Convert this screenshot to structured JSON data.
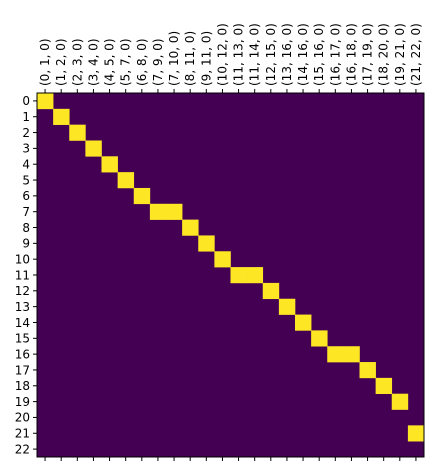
{
  "chart_data": {
    "type": "heatmap",
    "title": "",
    "xlabel": "",
    "ylabel": "",
    "colormap": "viridis",
    "colors": {
      "low": "#440154",
      "high": "#fde725"
    },
    "value_range": [
      0,
      1
    ],
    "x_tick_position": "top",
    "x_categories": [
      "(0, 1, 0)",
      "(1, 2, 0)",
      "(2, 3, 0)",
      "(3, 4, 0)",
      "(4, 5, 0)",
      "(5, 7, 0)",
      "(6, 8, 0)",
      "(7, 9, 0)",
      "(7, 10, 0)",
      "(8, 11, 0)",
      "(9, 11, 0)",
      "(10, 12, 0)",
      "(11, 13, 0)",
      "(11, 14, 0)",
      "(12, 15, 0)",
      "(13, 16, 0)",
      "(14, 16, 0)",
      "(15, 16, 0)",
      "(16, 17, 0)",
      "(16, 18, 0)",
      "(17, 19, 0)",
      "(18, 20, 0)",
      "(19, 21, 0)",
      "(21, 22, 0)"
    ],
    "y_categories": [
      "0",
      "1",
      "2",
      "3",
      "4",
      "5",
      "6",
      "7",
      "8",
      "9",
      "10",
      "11",
      "12",
      "13",
      "14",
      "15",
      "16",
      "17",
      "18",
      "19",
      "20",
      "21",
      "22"
    ],
    "high_cells": [
      [
        0,
        0
      ],
      [
        1,
        1
      ],
      [
        2,
        2
      ],
      [
        3,
        3
      ],
      [
        4,
        4
      ],
      [
        5,
        5
      ],
      [
        6,
        6
      ],
      [
        7,
        7
      ],
      [
        7,
        8
      ],
      [
        8,
        9
      ],
      [
        9,
        10
      ],
      [
        10,
        11
      ],
      [
        11,
        12
      ],
      [
        11,
        13
      ],
      [
        12,
        14
      ],
      [
        13,
        15
      ],
      [
        14,
        16
      ],
      [
        15,
        17
      ],
      [
        16,
        18
      ],
      [
        16,
        19
      ],
      [
        17,
        20
      ],
      [
        18,
        21
      ],
      [
        19,
        22
      ],
      [
        21,
        23
      ]
    ]
  }
}
